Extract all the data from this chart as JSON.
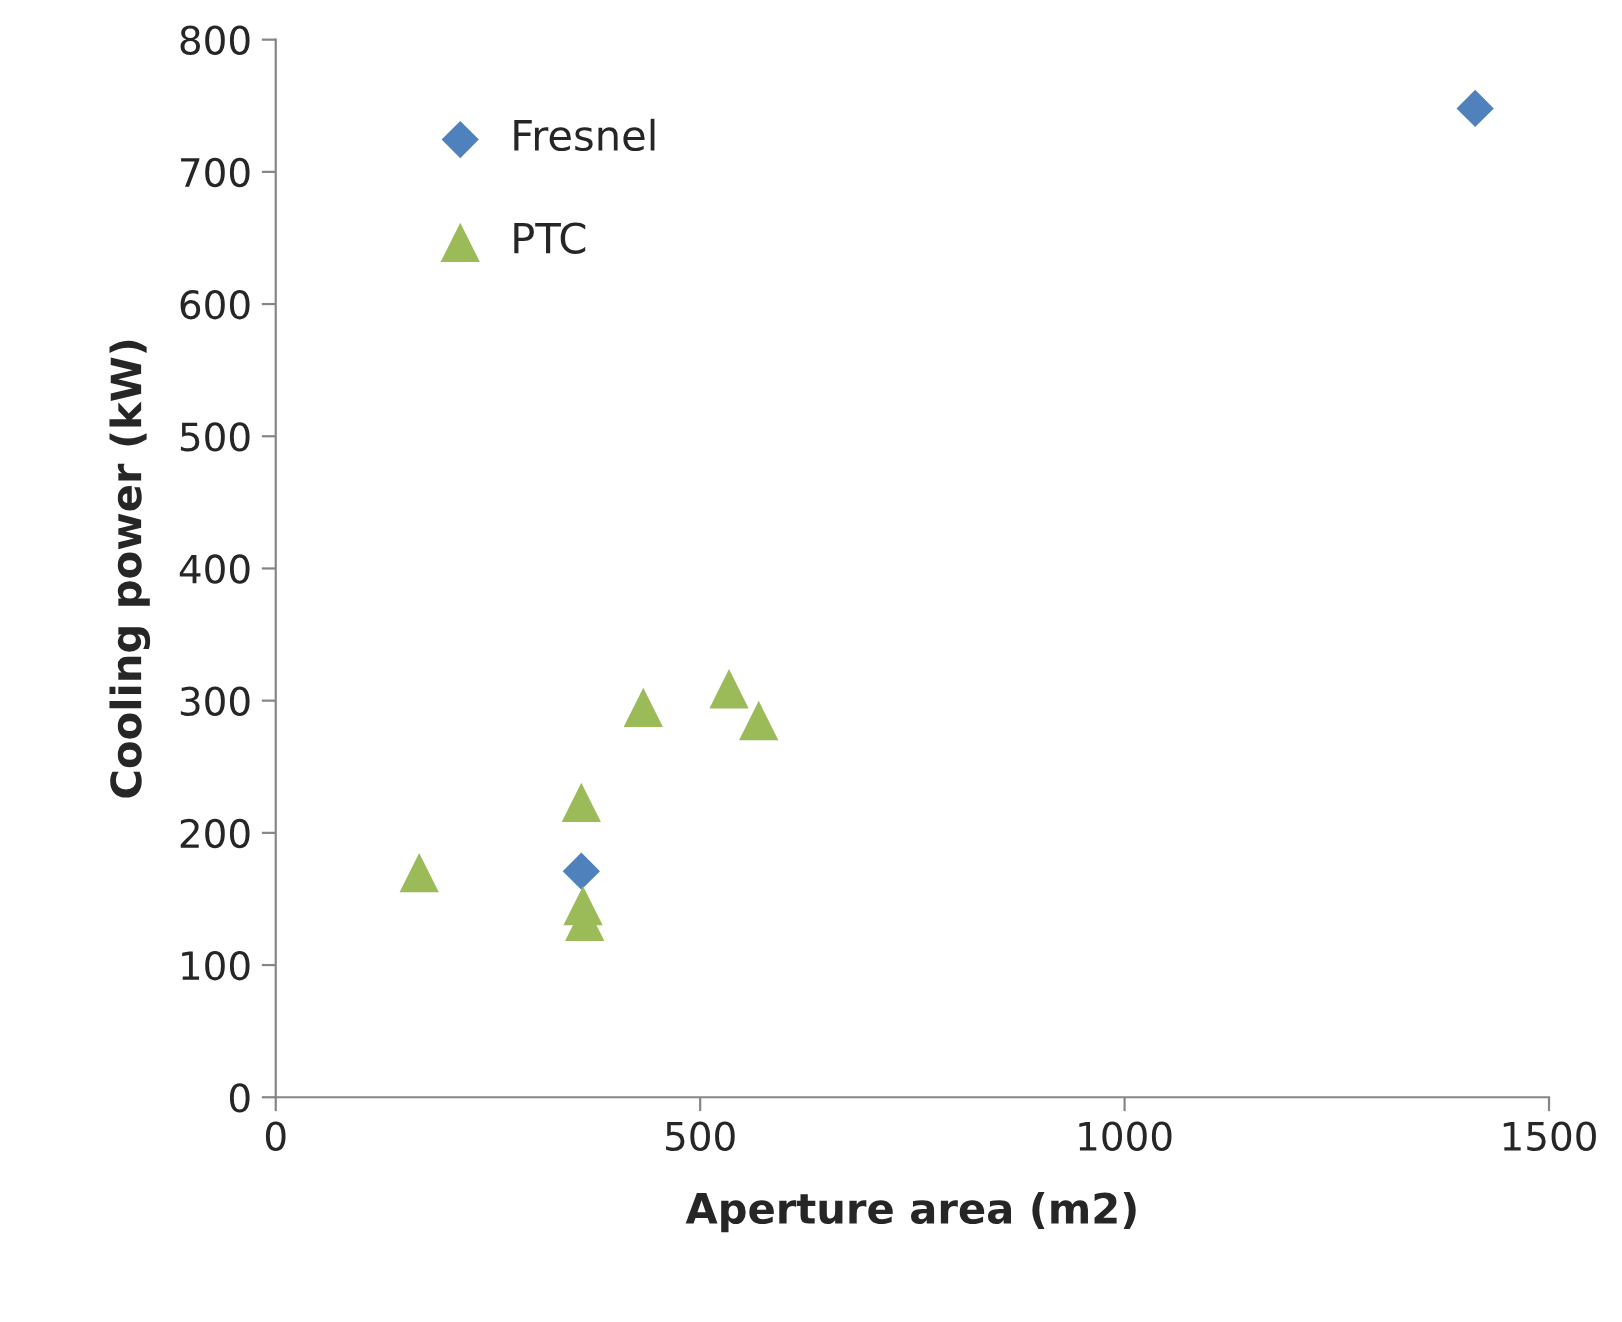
{
  "chart_data": {
    "type": "scatter",
    "xlabel": "Aperture area (m2)",
    "ylabel": "Cooling power (kW)",
    "xlim": [
      0,
      1500
    ],
    "xticks": [
      0,
      500,
      1000,
      1500
    ],
    "ylim": [
      0,
      800
    ],
    "yticks": [
      0,
      100,
      200,
      300,
      400,
      500,
      600,
      700,
      800
    ],
    "grid": false,
    "legend": "top left",
    "series": [
      {
        "name": "Fresnel",
        "color": "#4f81bd",
        "marker": "diamond",
        "x": [
          360,
          1413
        ],
        "values": [
          171,
          748
        ]
      },
      {
        "name": "PTC",
        "color": "#9bbb59",
        "marker": "triangle",
        "x": [
          169,
          360,
          362,
          364,
          433,
          534,
          569
        ],
        "values": [
          170,
          223,
          145,
          133,
          295,
          309,
          285
        ]
      }
    ]
  }
}
